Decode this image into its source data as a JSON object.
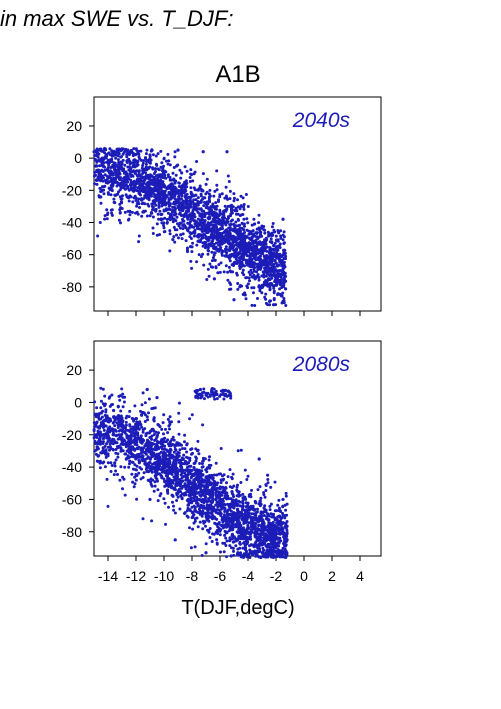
{
  "heading": "in max SWE vs. T_DJF:",
  "chart_data": {
    "type": "scatter",
    "title": "A1B",
    "xlabel": "T(DJF,degC)",
    "ylabel": "",
    "xlim": [
      -15,
      5.5
    ],
    "ylim": [
      -95,
      38
    ],
    "xticks": [
      -14,
      -12,
      -10,
      -8,
      -6,
      -4,
      -2,
      0,
      2,
      4
    ],
    "xtick_labels": [
      "-14",
      "-12",
      "-10",
      "-8",
      "-6",
      "-4",
      "-2",
      "0",
      "2",
      "4"
    ],
    "yticks": [
      20,
      0,
      -20,
      -40,
      -60,
      -80
    ],
    "ytick_labels": [
      "20",
      "0",
      "-20",
      "-40",
      "-60",
      "-80"
    ],
    "grid": false,
    "point_color": "#1c1cb8",
    "panels": [
      {
        "label": "2040s",
        "point_cloud": {
          "description": "dense negatively-sloped band of several thousand points",
          "x_range": [
            -15,
            -1.3
          ],
          "y_range": [
            -92,
            6
          ],
          "trend_points": [
            {
              "x": -14,
              "y": -8
            },
            {
              "x": -12,
              "y": -12
            },
            {
              "x": -10,
              "y": -22
            },
            {
              "x": -8,
              "y": -32
            },
            {
              "x": -6,
              "y": -45
            },
            {
              "x": -4,
              "y": -58
            },
            {
              "x": -2,
              "y": -68
            }
          ]
        },
        "sample_points": [
          {
            "x": -14.4,
            "y": 0
          },
          {
            "x": -13.5,
            "y": -8
          },
          {
            "x": -12.1,
            "y": -5
          },
          {
            "x": -11.0,
            "y": 2
          },
          {
            "x": -9.0,
            "y": 5
          },
          {
            "x": -7.2,
            "y": 4
          },
          {
            "x": -5.5,
            "y": 4
          },
          {
            "x": -10.2,
            "y": -35
          },
          {
            "x": -8.1,
            "y": -55
          },
          {
            "x": -6.4,
            "y": -75
          },
          {
            "x": -5.0,
            "y": -88
          },
          {
            "x": -4.2,
            "y": -85
          },
          {
            "x": -3.1,
            "y": -80
          },
          {
            "x": -2.1,
            "y": -60
          },
          {
            "x": -1.5,
            "y": -38
          },
          {
            "x": -1.8,
            "y": -70
          },
          {
            "x": -2.5,
            "y": -75
          }
        ]
      },
      {
        "label": "2080s",
        "point_cloud": {
          "description": "dense negatively-sloped band with a small detached cluster near (-7,5)",
          "x_range": [
            -15,
            -1.2
          ],
          "y_range": [
            -96,
            9
          ],
          "trend_points": [
            {
              "x": -14,
              "y": -18
            },
            {
              "x": -12,
              "y": -25
            },
            {
              "x": -10,
              "y": -35
            },
            {
              "x": -8,
              "y": -50
            },
            {
              "x": -6,
              "y": -65
            },
            {
              "x": -4,
              "y": -78
            },
            {
              "x": -2,
              "y": -85
            }
          ]
        },
        "sample_points": [
          {
            "x": -14.8,
            "y": -20
          },
          {
            "x": -13.6,
            "y": -5
          },
          {
            "x": -12.0,
            "y": -10
          },
          {
            "x": -11.2,
            "y": 8
          },
          {
            "x": -10.5,
            "y": 3
          },
          {
            "x": -7.4,
            "y": 8
          },
          {
            "x": -6.5,
            "y": 6
          },
          {
            "x": -5.6,
            "y": 5
          },
          {
            "x": -11.0,
            "y": -60
          },
          {
            "x": -9.2,
            "y": -85
          },
          {
            "x": -7.0,
            "y": -93
          },
          {
            "x": -5.2,
            "y": -95
          },
          {
            "x": -3.5,
            "y": -92
          },
          {
            "x": -2.0,
            "y": -80
          },
          {
            "x": -1.5,
            "y": -60
          },
          {
            "x": -2.6,
            "y": -45
          },
          {
            "x": -3.2,
            "y": -35
          }
        ]
      }
    ]
  }
}
